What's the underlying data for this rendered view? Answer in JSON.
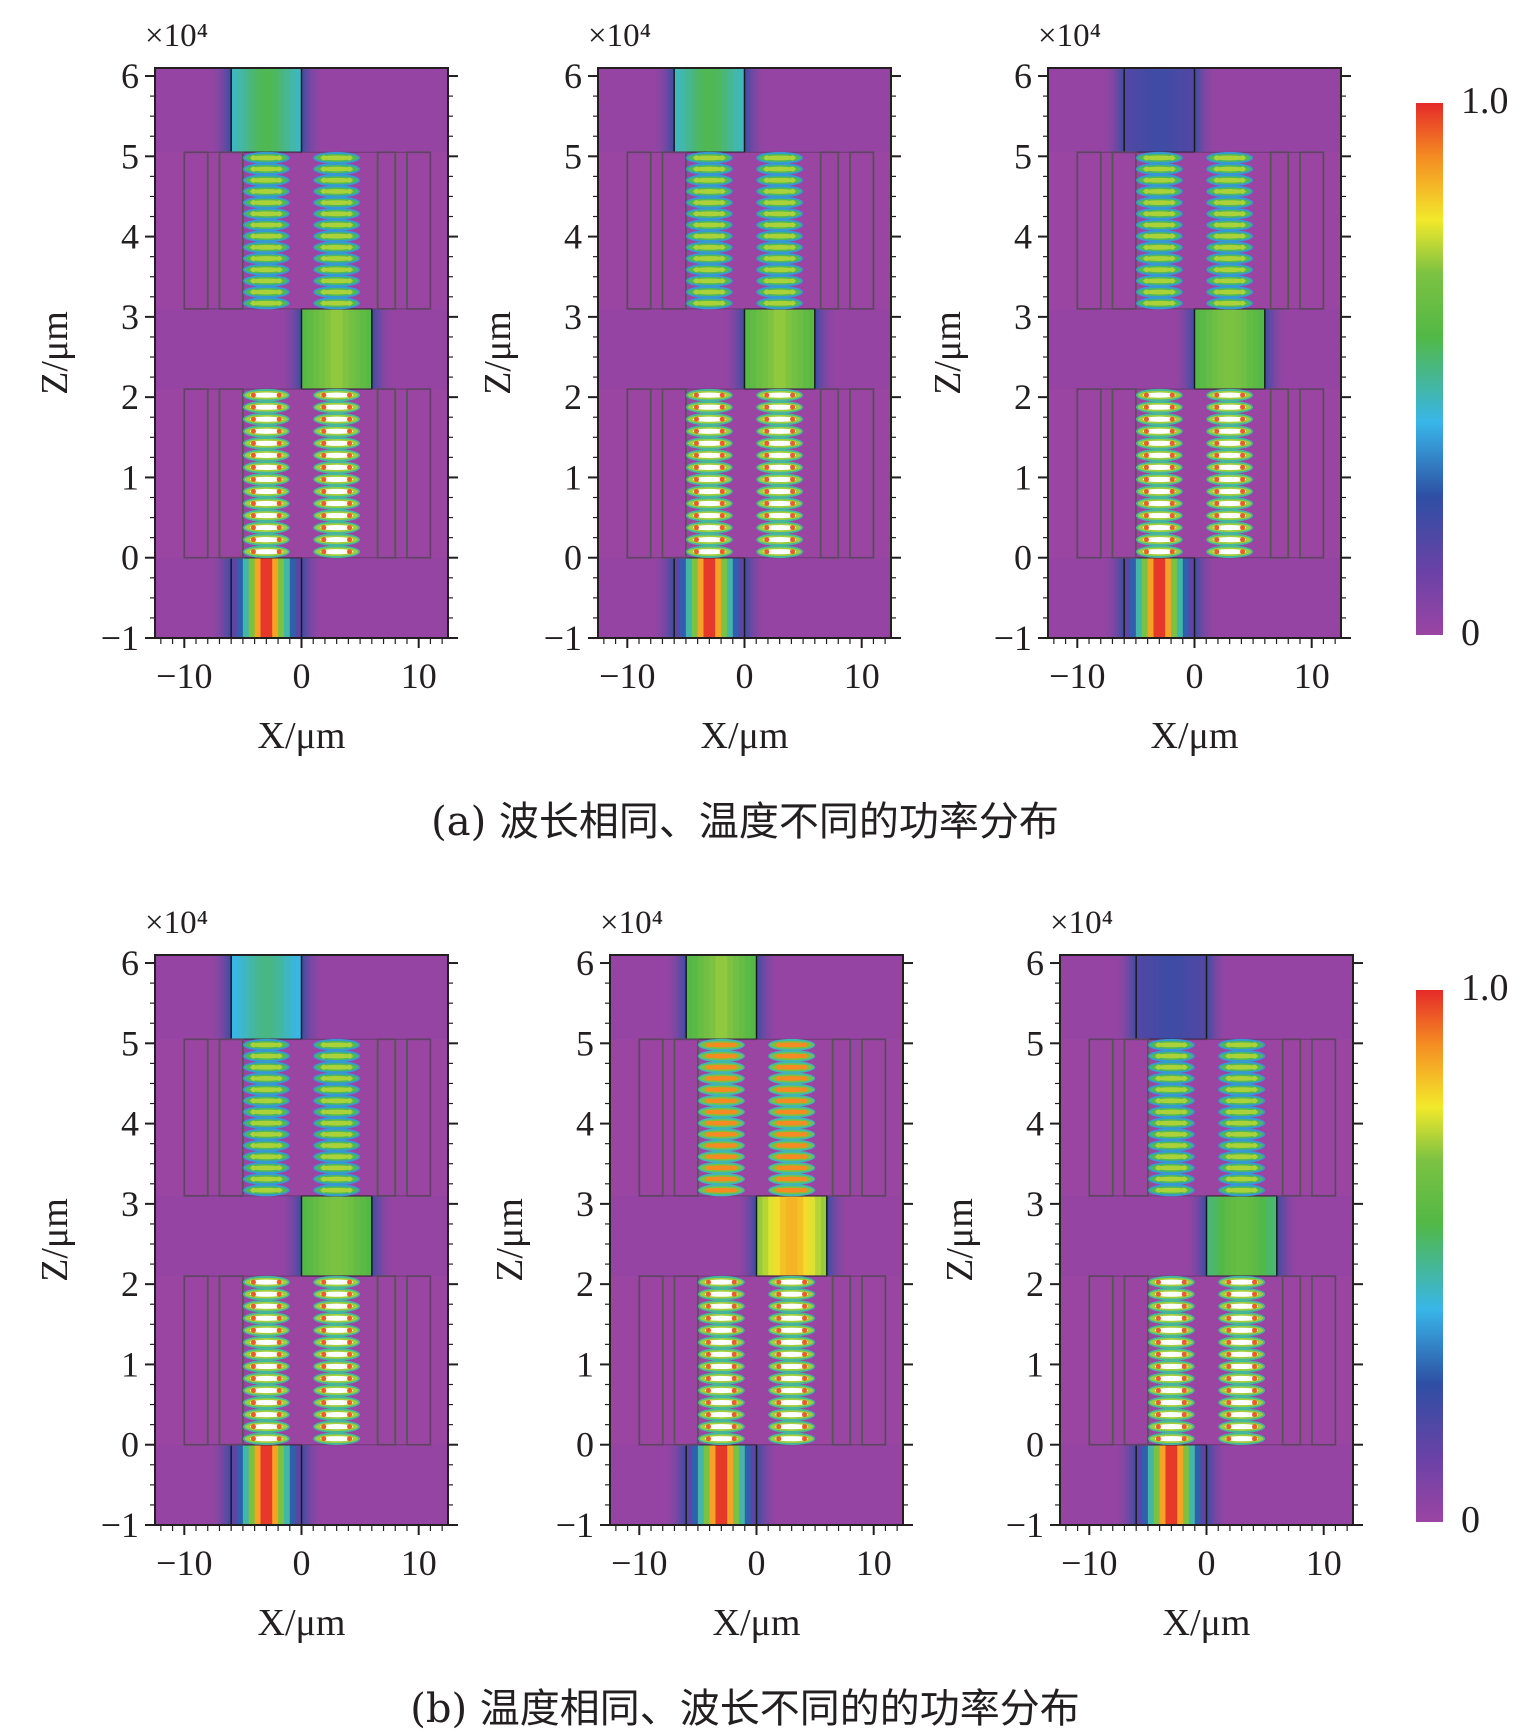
{
  "figure": {
    "caption_a": "(a) 波长相同、温度不同的功率分布",
    "caption_b": "(b) 温度相同、波长不同的的功率分布"
  },
  "chart_data": [
    {
      "type": "heatmap",
      "group": "a",
      "panels": [
        {
          "upper_io_intensity": 0.55,
          "mid_rod_intensity": 0.7,
          "upper_ring_intensity": 0.72,
          "lower_ring_intensity": 0.95,
          "input_intensity": 1.0
        },
        {
          "upper_io_intensity": 0.55,
          "mid_rod_intensity": 0.7,
          "upper_ring_intensity": 0.72,
          "lower_ring_intensity": 0.95,
          "input_intensity": 1.0
        },
        {
          "upper_io_intensity": 0.22,
          "mid_rod_intensity": 0.68,
          "upper_ring_intensity": 0.72,
          "lower_ring_intensity": 0.95,
          "input_intensity": 1.0
        }
      ],
      "xlabel": "X/μm",
      "ylabel": "Z/μm",
      "x_ticks": [
        -10,
        0,
        10
      ],
      "y_ticks": [
        -1,
        0,
        1,
        2,
        3,
        4,
        5,
        6
      ],
      "y_multiplier": "×10⁴",
      "xlim": [
        -12.5,
        12.5
      ],
      "ylim": [
        -1,
        6.1
      ],
      "colorbar": {
        "min_label": "0",
        "max_label": "1.0",
        "range": [
          0,
          1.0
        ]
      }
    },
    {
      "type": "heatmap",
      "group": "b",
      "panels": [
        {
          "upper_io_intensity": 0.5,
          "mid_rod_intensity": 0.68,
          "upper_ring_intensity": 0.72,
          "lower_ring_intensity": 0.95,
          "input_intensity": 1.0
        },
        {
          "upper_io_intensity": 0.7,
          "mid_rod_intensity": 0.85,
          "upper_ring_intensity": 0.9,
          "lower_ring_intensity": 0.95,
          "input_intensity": 1.0
        },
        {
          "upper_io_intensity": 0.22,
          "mid_rod_intensity": 0.62,
          "upper_ring_intensity": 0.72,
          "lower_ring_intensity": 0.95,
          "input_intensity": 1.0
        }
      ],
      "xlabel": "X/μm",
      "ylabel": "Z/μm",
      "x_ticks": [
        -10,
        0,
        10
      ],
      "y_ticks": [
        -1,
        0,
        1,
        2,
        3,
        4,
        5,
        6
      ],
      "y_multiplier": "×10⁴",
      "xlim": [
        -12.5,
        12.5
      ],
      "ylim": [
        -1,
        6.1
      ],
      "colorbar": {
        "min_label": "0",
        "max_label": "1.0",
        "range": [
          0,
          1.0
        ]
      }
    }
  ]
}
